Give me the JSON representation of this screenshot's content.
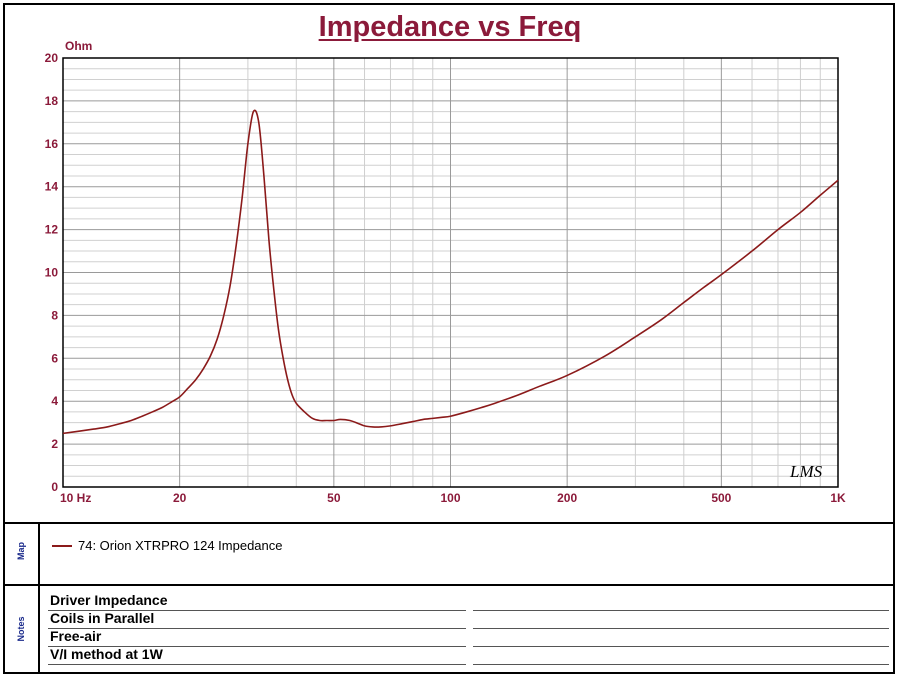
{
  "chart_data": {
    "type": "line",
    "title": "Impedance vs Freq",
    "ylabel": "Ohm",
    "xlabel": "",
    "xscale": "log",
    "xlim": [
      10,
      1000
    ],
    "ylim": [
      0,
      20
    ],
    "yticks": [
      0,
      2,
      4,
      6,
      8,
      10,
      12,
      14,
      16,
      18,
      20
    ],
    "ytick_labels": [
      "0",
      "2",
      "4",
      "6",
      "8",
      "10",
      "12",
      "14",
      "16",
      "18",
      "20"
    ],
    "xticks": [
      10,
      20,
      50,
      100,
      200,
      500,
      1000
    ],
    "xtick_labels": [
      "10 Hz",
      "20",
      "50",
      "100",
      "200",
      "500",
      "1K"
    ],
    "grid": true,
    "watermark": "LMS",
    "series": [
      {
        "name": "74: Orion XTRPRO 124 Impedance",
        "color": "#8b1a1a",
        "x": [
          10,
          11,
          12,
          13,
          14,
          15,
          16,
          17,
          18,
          19,
          20,
          21,
          22,
          23,
          24,
          25,
          26,
          27,
          28,
          29,
          30,
          31,
          32,
          33,
          34,
          35,
          36,
          37,
          38,
          39,
          40,
          42,
          44,
          46,
          48,
          50,
          52,
          55,
          58,
          60,
          63,
          66,
          70,
          75,
          80,
          85,
          90,
          95,
          100,
          110,
          120,
          130,
          150,
          170,
          200,
          250,
          300,
          350,
          400,
          450,
          500,
          600,
          700,
          800,
          900,
          1000
        ],
        "y": [
          2.5,
          2.6,
          2.7,
          2.8,
          2.95,
          3.1,
          3.3,
          3.5,
          3.7,
          3.95,
          4.2,
          4.6,
          5.0,
          5.5,
          6.1,
          6.9,
          8.0,
          9.4,
          11.3,
          13.5,
          16.0,
          17.5,
          17.0,
          14.5,
          11.5,
          9.2,
          7.3,
          6.0,
          5.0,
          4.3,
          3.9,
          3.5,
          3.2,
          3.1,
          3.1,
          3.1,
          3.15,
          3.1,
          2.95,
          2.85,
          2.8,
          2.8,
          2.85,
          2.95,
          3.05,
          3.15,
          3.2,
          3.25,
          3.3,
          3.5,
          3.7,
          3.9,
          4.3,
          4.7,
          5.2,
          6.1,
          7.0,
          7.8,
          8.6,
          9.3,
          9.9,
          11.0,
          12.0,
          12.8,
          13.6,
          14.3
        ]
      }
    ]
  },
  "panels": {
    "map_label": "Map",
    "notes_label": "Notes",
    "legend_entry": "74: Orion XTRPRO 124 Impedance",
    "notes": [
      "Driver Impedance",
      "Coils in Parallel",
      "Free-air",
      "V/I method at 1W"
    ]
  }
}
